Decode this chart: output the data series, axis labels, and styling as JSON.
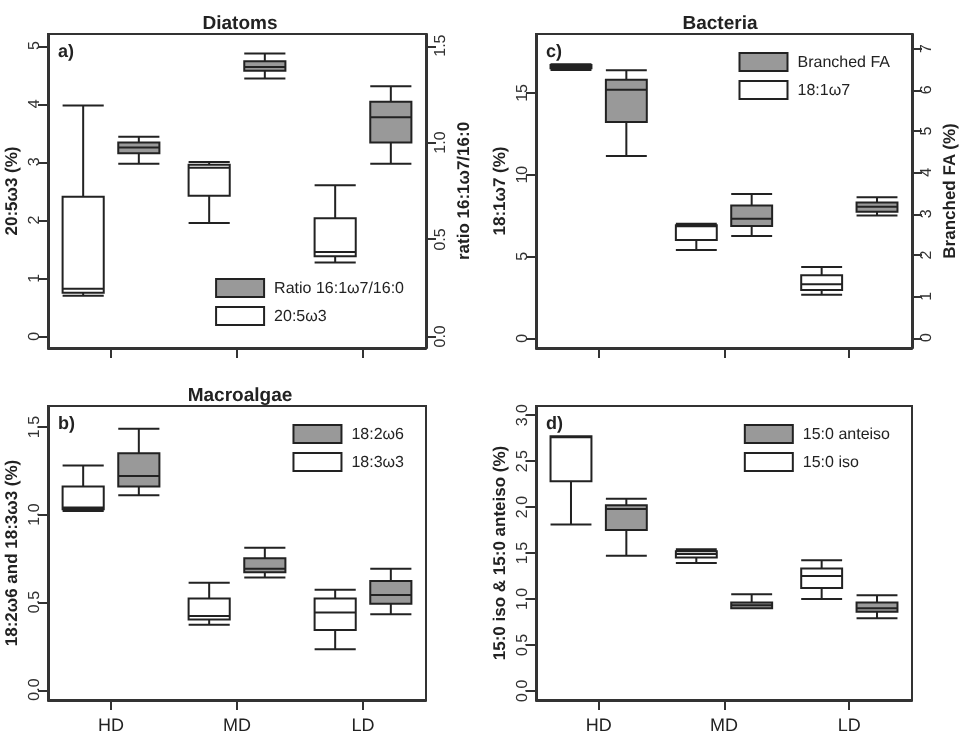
{
  "chart_data": [
    {
      "type": "box",
      "title": "Diatoms",
      "annotations": [
        "a)"
      ],
      "categories": [
        null,
        null,
        null
      ],
      "tick_labels": "y",
      "legend": "bottom right",
      "ylabel": "20:5ω3 (%)",
      "y2label": "ratio 16:1ω7/16:0",
      "ylim": [
        -0.2,
        5.2
      ],
      "yticks": [
        0,
        1,
        2,
        3,
        4,
        5
      ],
      "y2lim": [
        -0.06,
        1.56
      ],
      "y2ticks": [
        {
          "value": 0,
          "label": "0.0"
        },
        {
          "value": 0.5,
          "label": "0.5"
        },
        {
          "value": 1,
          "label": "1.0"
        },
        {
          "value": 1.5,
          "label": "1.5"
        }
      ],
      "series": [
        {
          "name": "20:5ω3",
          "color": "#ffffff",
          "boxes": [
            {
              "low": 0.7,
              "q1": 0.75,
              "median": 0.82,
              "q3": 2.4,
              "high": 3.97
            },
            {
              "low": 1.95,
              "q1": 2.42,
              "median": 2.9,
              "q3": 2.95,
              "high": 3.0
            },
            {
              "low": 1.27,
              "q1": 1.38,
              "median": 1.45,
              "q3": 2.03,
              "high": 2.6
            }
          ]
        },
        {
          "name": "Ratio 16:1ω7/16:0",
          "color": "#999999",
          "axis": "y2",
          "boxes": [
            {
              "low": 0.89,
              "q1": 0.945,
              "median": 0.975,
              "q3": 1.0,
              "high": 1.03
            },
            {
              "low": 1.33,
              "q1": 1.37,
              "median": 1.39,
              "q3": 1.42,
              "high": 1.46
            },
            {
              "low": 0.89,
              "q1": 1.0,
              "median": 1.13,
              "q3": 1.21,
              "high": 1.29
            }
          ]
        }
      ]
    },
    {
      "type": "box",
      "title": "Bacteria",
      "annotations": [
        "c)"
      ],
      "categories": [
        null,
        null,
        null
      ],
      "tick_labels": "y",
      "legend": "top right",
      "ylabel": "18:1ω7 (%)",
      "y2label": "Branched FA (%)",
      "ylim": [
        -0.6,
        18.6
      ],
      "yticks": [
        0,
        5,
        10,
        15
      ],
      "y2lim": [
        -0.25,
        7.35
      ],
      "y2ticks": [
        0,
        1,
        2,
        3,
        4,
        5,
        6,
        7
      ],
      "series": [
        {
          "name": "18:1ω7",
          "color": "#ffffff",
          "boxes": [
            {
              "low": 16.4,
              "q1": 16.5,
              "median": 16.6,
              "q3": 16.7,
              "high": 16.75
            },
            {
              "low": 5.4,
              "q1": 6.0,
              "median": 6.85,
              "q3": 6.9,
              "high": 7.0
            },
            {
              "low": 2.65,
              "q1": 2.95,
              "median": 3.3,
              "q3": 3.85,
              "high": 4.35
            }
          ]
        },
        {
          "name": "Branched FA",
          "color": "#999999",
          "axis": "y2",
          "boxes": [
            {
              "low": 4.4,
              "q1": 5.22,
              "median": 6.0,
              "q3": 6.24,
              "high": 6.47
            },
            {
              "low": 2.46,
              "q1": 2.7,
              "median": 2.88,
              "q3": 3.2,
              "high": 3.48
            },
            {
              "low": 2.96,
              "q1": 3.05,
              "median": 3.17,
              "q3": 3.27,
              "high": 3.4
            }
          ]
        }
      ]
    },
    {
      "type": "box",
      "title": "Macroalgae",
      "annotations": [
        "b)"
      ],
      "categories": [
        "HD",
        "MD",
        "LD"
      ],
      "legend": "top right",
      "ylabel": "18:2ω6 and 18:3ω3 (%)",
      "ylim": [
        -0.06,
        1.62
      ],
      "yticks": [
        {
          "value": 0,
          "label": "0.0"
        },
        {
          "value": 0.5,
          "label": "0.5"
        },
        {
          "value": 1,
          "label": "1.0"
        },
        {
          "value": 1.5,
          "label": "1.5"
        }
      ],
      "series": [
        {
          "name": "18:3ω3",
          "color": "#ffffff",
          "boxes": [
            {
              "low": 1.02,
              "q1": 1.03,
              "median": 1.04,
              "q3": 1.16,
              "high": 1.28
            },
            {
              "low": 0.37,
              "q1": 0.4,
              "median": 0.42,
              "q3": 0.52,
              "high": 0.61
            },
            {
              "low": 0.23,
              "q1": 0.34,
              "median": 0.44,
              "q3": 0.52,
              "high": 0.57
            }
          ]
        },
        {
          "name": "18:2ω6",
          "color": "#999999",
          "boxes": [
            {
              "low": 1.11,
              "q1": 1.16,
              "median": 1.22,
              "q3": 1.35,
              "high": 1.49
            },
            {
              "low": 0.64,
              "q1": 0.67,
              "median": 0.69,
              "q3": 0.75,
              "high": 0.81
            },
            {
              "low": 0.43,
              "q1": 0.49,
              "median": 0.54,
              "q3": 0.62,
              "high": 0.69
            }
          ]
        }
      ]
    },
    {
      "type": "box",
      "annotations": [
        "d)"
      ],
      "categories": [
        "HD",
        "MD",
        "LD"
      ],
      "legend": "top right",
      "ylabel": "15:0 iso & 15:0 anteiso (%)",
      "ylim": [
        -0.1,
        3.1
      ],
      "yticks": [
        {
          "value": 0,
          "label": "0.0"
        },
        {
          "value": 0.5,
          "label": "0.5"
        },
        {
          "value": 1,
          "label": "1.0"
        },
        {
          "value": 1.5,
          "label": "1.5"
        },
        {
          "value": 2,
          "label": "2.0"
        },
        {
          "value": 2.5,
          "label": "2.5"
        },
        {
          "value": 3,
          "label": "3.0"
        }
      ],
      "series": [
        {
          "name": "15:0 iso",
          "color": "#ffffff",
          "boxes": [
            {
              "low": 1.81,
              "q1": 2.28,
              "median": 2.76,
              "q3": 2.77,
              "high": 2.77
            },
            {
              "low": 1.39,
              "q1": 1.45,
              "median": 1.49,
              "q3": 1.52,
              "high": 1.54
            },
            {
              "low": 1.0,
              "q1": 1.12,
              "median": 1.25,
              "q3": 1.33,
              "high": 1.42
            }
          ]
        },
        {
          "name": "15:0 anteiso",
          "color": "#999999",
          "boxes": [
            {
              "low": 1.47,
              "q1": 1.75,
              "median": 1.98,
              "q3": 2.02,
              "high": 2.09
            },
            {
              "low": 0.9,
              "q1": 0.9,
              "median": 0.93,
              "q3": 0.96,
              "high": 1.05
            },
            {
              "low": 0.79,
              "q1": 0.86,
              "median": 0.9,
              "q3": 0.96,
              "high": 1.04
            }
          ]
        }
      ]
    }
  ]
}
